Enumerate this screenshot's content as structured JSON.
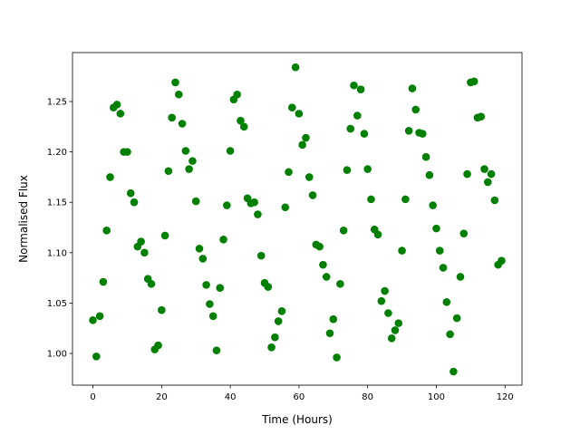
{
  "chart_data": {
    "type": "scatter",
    "x_label": "Time (Hours)",
    "y_label": "Normalised Flux",
    "color": "#008000",
    "x": [
      0,
      1,
      2,
      3,
      4,
      5,
      6,
      7,
      8,
      9,
      10,
      11,
      12,
      13,
      14,
      15,
      16,
      17,
      18,
      19,
      20,
      21,
      22,
      23,
      24,
      25,
      26,
      27,
      28,
      29,
      30,
      31,
      32,
      33,
      34,
      35,
      36,
      37,
      38,
      39,
      40,
      41,
      42,
      43,
      44,
      45,
      46,
      47,
      48,
      49,
      50,
      51,
      52,
      53,
      54,
      55,
      56,
      57,
      58,
      59,
      60,
      61,
      62,
      63,
      64,
      65,
      66,
      67,
      68,
      69,
      70,
      71,
      72,
      73,
      74,
      75,
      76,
      77,
      78,
      79,
      80,
      81,
      82,
      83,
      84,
      85,
      86,
      87,
      88,
      89,
      90,
      91,
      92,
      93,
      94,
      95,
      96,
      97,
      98,
      99,
      100,
      101,
      102,
      103,
      104,
      105,
      106,
      107,
      108,
      109,
      110,
      111,
      112,
      113,
      114,
      115,
      116,
      117,
      118,
      119
    ],
    "values": [
      1.033,
      0.997,
      1.037,
      1.071,
      1.122,
      1.175,
      1.244,
      1.247,
      1.238,
      1.2,
      1.2,
      1.159,
      1.15,
      1.106,
      1.111,
      1.1,
      1.074,
      1.069,
      1.004,
      1.008,
      1.043,
      1.117,
      1.181,
      1.234,
      1.269,
      1.257,
      1.228,
      1.201,
      1.183,
      1.191,
      1.151,
      1.104,
      1.094,
      1.068,
      1.049,
      1.037,
      1.003,
      1.065,
      1.113,
      1.147,
      1.201,
      1.252,
      1.257,
      1.231,
      1.225,
      1.154,
      1.149,
      1.15,
      1.138,
      1.097,
      1.07,
      1.066,
      1.006,
      1.016,
      1.032,
      1.042,
      1.145,
      1.18,
      1.244,
      1.284,
      1.238,
      1.207,
      1.214,
      1.175,
      1.157,
      1.108,
      1.106,
      1.088,
      1.076,
      1.02,
      1.034,
      0.996,
      1.069,
      1.122,
      1.182,
      1.223,
      1.266,
      1.236,
      1.262,
      1.218,
      1.183,
      1.153,
      1.123,
      1.118,
      1.052,
      1.062,
      1.04,
      1.015,
      1.023,
      1.03,
      1.102,
      1.153,
      1.221,
      1.263,
      1.242,
      1.219,
      1.218,
      1.195,
      1.177,
      1.147,
      1.124,
      1.102,
      1.085,
      1.051,
      1.019,
      0.982,
      1.035,
      1.076,
      1.119,
      1.178,
      1.269,
      1.27,
      1.234,
      1.235,
      1.183,
      1.17,
      1.178,
      1.152,
      1.088,
      1.092
    ],
    "xlim": [
      -5.95,
      124.95
    ],
    "ylim": [
      0.9685,
      1.2986
    ],
    "xticks": [
      0,
      20,
      40,
      60,
      80,
      100,
      120
    ],
    "yticks": [
      {
        "value": 1.0,
        "label": "1.00"
      },
      {
        "value": 1.05,
        "label": "1.05"
      },
      {
        "value": 1.1,
        "label": "1.10"
      },
      {
        "value": 1.15,
        "label": "1.15"
      },
      {
        "value": 1.2,
        "label": "1.20"
      },
      {
        "value": 1.25,
        "label": "1.25"
      }
    ]
  }
}
